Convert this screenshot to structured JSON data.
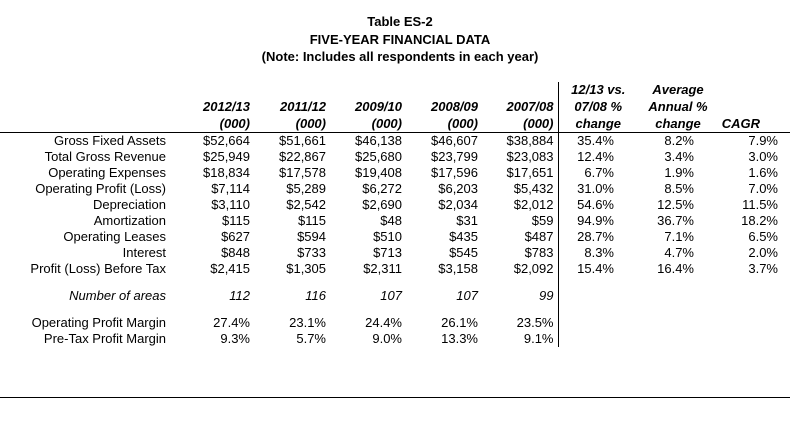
{
  "title": {
    "line1": "Table ES-2",
    "line2": "FIVE-YEAR FINANCIAL DATA",
    "line3": "(Note:  Includes all respondents in each year)"
  },
  "headers": {
    "years": [
      {
        "year": "2012/13",
        "unit": "(000)"
      },
      {
        "year": "2011/12",
        "unit": "(000)"
      },
      {
        "year": "2009/10",
        "unit": "(000)"
      },
      {
        "year": "2008/09",
        "unit": "(000)"
      },
      {
        "year": "2007/08",
        "unit": "(000)"
      }
    ],
    "change": [
      "12/13 vs.",
      "07/08 %",
      "change"
    ],
    "avg": [
      "Average",
      "Annual %",
      "change"
    ],
    "cagr": "CAGR"
  },
  "rows": [
    {
      "label": "Gross Fixed Assets",
      "values": [
        "$52,664",
        "$51,661",
        "$46,138",
        "$46,607",
        "$38,884"
      ],
      "change": "35.4%",
      "avg": "8.2%",
      "cagr": "7.9%"
    },
    {
      "label": "Total Gross Revenue",
      "values": [
        "$25,949",
        "$22,867",
        "$25,680",
        "$23,799",
        "$23,083"
      ],
      "change": "12.4%",
      "avg": "3.4%",
      "cagr": "3.0%"
    },
    {
      "label": "Operating Expenses",
      "values": [
        "$18,834",
        "$17,578",
        "$19,408",
        "$17,596",
        "$17,651"
      ],
      "change": "6.7%",
      "avg": "1.9%",
      "cagr": "1.6%"
    },
    {
      "label": "Operating Profit (Loss)",
      "values": [
        "$7,114",
        "$5,289",
        "$6,272",
        "$6,203",
        "$5,432"
      ],
      "change": "31.0%",
      "avg": "8.5%",
      "cagr": "7.0%"
    },
    {
      "label": "Depreciation",
      "values": [
        "$3,110",
        "$2,542",
        "$2,690",
        "$2,034",
        "$2,012"
      ],
      "change": "54.6%",
      "avg": "12.5%",
      "cagr": "11.5%"
    },
    {
      "label": "Amortization",
      "values": [
        "$115",
        "$115",
        "$48",
        "$31",
        "$59"
      ],
      "change": "94.9%",
      "avg": "36.7%",
      "cagr": "18.2%"
    },
    {
      "label": "Operating Leases",
      "values": [
        "$627",
        "$594",
        "$510",
        "$435",
        "$487"
      ],
      "change": "28.7%",
      "avg": "7.1%",
      "cagr": "6.5%"
    },
    {
      "label": "Interest",
      "values": [
        "$848",
        "$733",
        "$713",
        "$545",
        "$783"
      ],
      "change": "8.3%",
      "avg": "4.7%",
      "cagr": "2.0%"
    },
    {
      "label": "Profit (Loss) Before Tax",
      "values": [
        "$2,415",
        "$1,305",
        "$2,311",
        "$3,158",
        "$2,092"
      ],
      "change": "15.4%",
      "avg": "16.4%",
      "cagr": "3.7%"
    }
  ],
  "areas": {
    "label": "Number of areas",
    "values": [
      "112",
      "116",
      "107",
      "107",
      "99"
    ]
  },
  "margins": [
    {
      "label": "Operating Profit Margin",
      "values": [
        "27.4%",
        "23.1%",
        "24.4%",
        "26.1%",
        "23.5%"
      ]
    },
    {
      "label": "Pre-Tax Profit Margin",
      "values": [
        "9.3%",
        "5.7%",
        "9.0%",
        "13.3%",
        "9.1%"
      ]
    }
  ]
}
